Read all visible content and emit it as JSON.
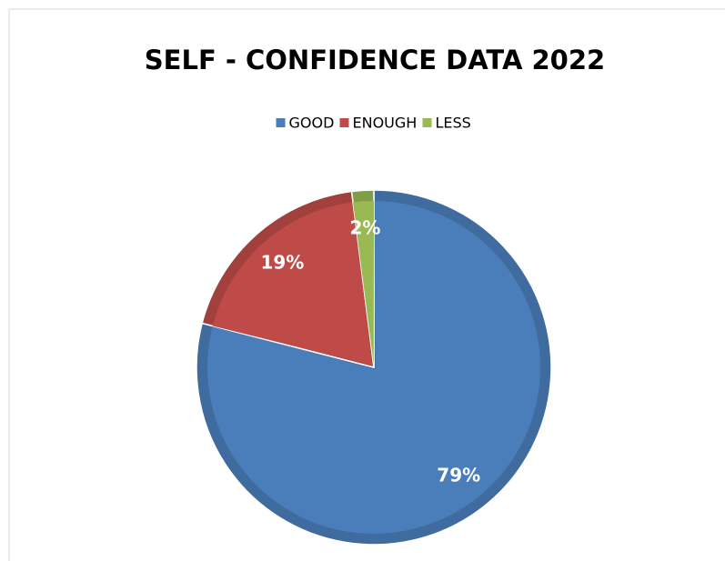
{
  "chart_data": {
    "type": "pie",
    "title": "SELF - CONFIDENCE DATA 2022",
    "categories": [
      "GOOD",
      "ENOUGH",
      "LESS"
    ],
    "values": [
      79,
      19,
      2
    ],
    "value_labels": [
      "79%",
      "19%",
      "2%"
    ],
    "colors": [
      "#4a7ebb",
      "#be4b48",
      "#98b954"
    ],
    "legend": "top"
  }
}
